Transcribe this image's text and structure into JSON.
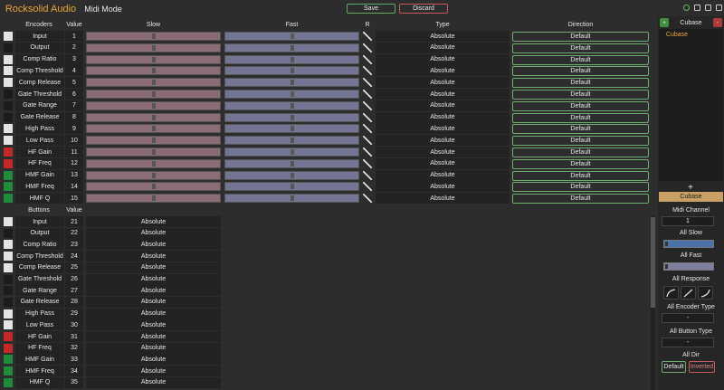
{
  "header": {
    "title": "Rocksolid Audio",
    "mode": "Midi Mode",
    "save": "Save",
    "discard": "Discard"
  },
  "encoders": {
    "columns": [
      "Encoders",
      "Value",
      "Slow",
      "Fast",
      "R",
      "Type",
      "Direction"
    ],
    "rows": [
      {
        "name": "Input",
        "value": 1,
        "type": "Absolute",
        "direction": "Default",
        "color": "#e4e4e4"
      },
      {
        "name": "Output",
        "value": 2,
        "type": "Absolute",
        "direction": "Default",
        "color": "#1c1c1c"
      },
      {
        "name": "Comp Ratio",
        "value": 3,
        "type": "Absolute",
        "direction": "Default",
        "color": "#e4e4e4"
      },
      {
        "name": "Comp Threshold",
        "value": 4,
        "type": "Absolute",
        "direction": "Default",
        "color": "#e4e4e4"
      },
      {
        "name": "Comp Release",
        "value": 5,
        "type": "Absolute",
        "direction": "Default",
        "color": "#e4e4e4"
      },
      {
        "name": "Gate Threshold",
        "value": 6,
        "type": "Absolute",
        "direction": "Default",
        "color": "#1c1c1c"
      },
      {
        "name": "Gate Range",
        "value": 7,
        "type": "Absolute",
        "direction": "Default",
        "color": "#1c1c1c"
      },
      {
        "name": "Gate Release",
        "value": 8,
        "type": "Absolute",
        "direction": "Default",
        "color": "#1c1c1c"
      },
      {
        "name": "High Pass",
        "value": 9,
        "type": "Absolute",
        "direction": "Default",
        "color": "#e4e4e4"
      },
      {
        "name": "Low Pass",
        "value": 10,
        "type": "Absolute",
        "direction": "Default",
        "color": "#e4e4e4"
      },
      {
        "name": "HF Gain",
        "value": 11,
        "type": "Absolute",
        "direction": "Default",
        "color": "#c62828"
      },
      {
        "name": "HF Freq",
        "value": 12,
        "type": "Absolute",
        "direction": "Default",
        "color": "#c62828"
      },
      {
        "name": "HMF Gain",
        "value": 13,
        "type": "Absolute",
        "direction": "Default",
        "color": "#1e8c3a"
      },
      {
        "name": "HMF Freq",
        "value": 14,
        "type": "Absolute",
        "direction": "Default",
        "color": "#1e8c3a"
      },
      {
        "name": "HMF Q",
        "value": 15,
        "type": "Absolute",
        "direction": "Default",
        "color": "#1e8c3a"
      }
    ]
  },
  "buttons": {
    "columns": [
      "Buttons",
      "Value"
    ],
    "rows": [
      {
        "name": "Input",
        "value": 21,
        "type": "Absolute",
        "color": "#e4e4e4"
      },
      {
        "name": "Output",
        "value": 22,
        "type": "Absolute",
        "color": "#1c1c1c"
      },
      {
        "name": "Comp Ratio",
        "value": 23,
        "type": "Absolute",
        "color": "#e4e4e4"
      },
      {
        "name": "Comp Threshold",
        "value": 24,
        "type": "Absolute",
        "color": "#e4e4e4"
      },
      {
        "name": "Comp Release",
        "value": 25,
        "type": "Absolute",
        "color": "#e4e4e4"
      },
      {
        "name": "Gate Threshold",
        "value": 26,
        "type": "Absolute",
        "color": "#1c1c1c"
      },
      {
        "name": "Gate Range",
        "value": 27,
        "type": "Absolute",
        "color": "#1c1c1c"
      },
      {
        "name": "Gate Release",
        "value": 28,
        "type": "Absolute",
        "color": "#1c1c1c"
      },
      {
        "name": "High Pass",
        "value": 29,
        "type": "Absolute",
        "color": "#e4e4e4"
      },
      {
        "name": "Low Pass",
        "value": 30,
        "type": "Absolute",
        "color": "#e4e4e4"
      },
      {
        "name": "HF Gain",
        "value": 31,
        "type": "Absolute",
        "color": "#c62828"
      },
      {
        "name": "HF Freq",
        "value": 32,
        "type": "Absolute",
        "color": "#c62828"
      },
      {
        "name": "HMF Gain",
        "value": 33,
        "type": "Absolute",
        "color": "#1e8c3a"
      },
      {
        "name": "HMF Freq",
        "value": 34,
        "type": "Absolute",
        "color": "#1e8c3a"
      },
      {
        "name": "HMF Q",
        "value": 35,
        "type": "Absolute",
        "color": "#1e8c3a"
      }
    ]
  },
  "sidebar": {
    "add": "+",
    "remove": "-",
    "preset": "Cubase",
    "presets": [
      "Cubase"
    ],
    "add_selected": "+",
    "selected": "Cubase",
    "midi_channel_label": "Midi Channel",
    "midi_channel": "1",
    "all_slow": "All Slow",
    "all_fast": "All Fast",
    "all_response": "All Response",
    "all_encoder_type": "All Encoder Type",
    "encoder_type": "-",
    "all_button_type": "All Button Type",
    "button_type": "-",
    "all_dir": "All Dir",
    "default": "Default",
    "inverted": "Inverted"
  }
}
